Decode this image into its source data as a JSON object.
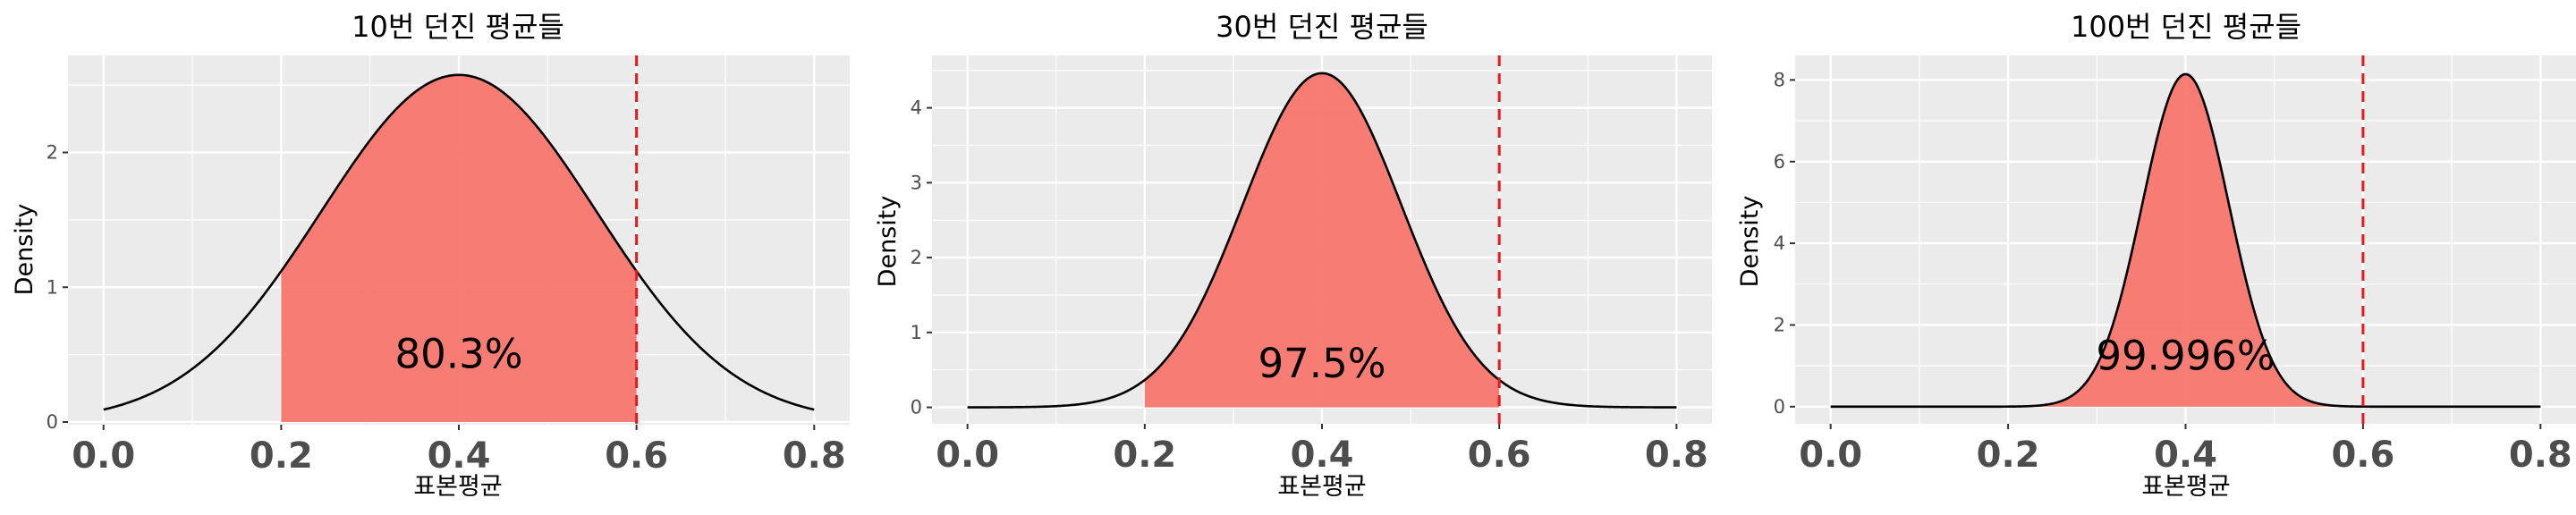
{
  "chart_data": [
    {
      "type": "area",
      "title": "10번 던진 평균들",
      "xlabel": "표본평균",
      "ylabel": "Density",
      "xlim": [
        -0.04,
        0.84
      ],
      "ylim": [
        -0.02,
        2.72
      ],
      "xticks": [
        "0.0",
        "0.2",
        "0.4",
        "0.6",
        "0.8"
      ],
      "xtick_values": [
        0.0,
        0.2,
        0.4,
        0.6,
        0.8
      ],
      "yticks": [
        "0",
        "1",
        "2"
      ],
      "ytick_values": [
        0,
        1,
        2
      ],
      "mean": 0.4,
      "sd": 0.1549,
      "curve_range": [
        0.0,
        0.8
      ],
      "shaded_range": [
        0.2,
        0.6
      ],
      "vline": 0.6,
      "annotation": {
        "text": "80.3%",
        "x": 0.4,
        "y": 0.4
      },
      "grid": true,
      "colors": {
        "fill": "#f8766d",
        "line": "#000000",
        "vline": "#e41a1c",
        "panel": "#ebebeb",
        "grid": "#ffffff"
      }
    },
    {
      "type": "area",
      "title": "30번 던진 평균들",
      "xlabel": "표본평균",
      "ylabel": "Density",
      "xlim": [
        -0.04,
        0.84
      ],
      "ylim": [
        -0.22,
        4.7
      ],
      "xticks": [
        "0.0",
        "0.2",
        "0.4",
        "0.6",
        "0.8"
      ],
      "xtick_values": [
        0.0,
        0.2,
        0.4,
        0.6,
        0.8
      ],
      "yticks": [
        "0",
        "1",
        "2",
        "3",
        "4"
      ],
      "ytick_values": [
        0,
        1,
        2,
        3,
        4
      ],
      "mean": 0.4,
      "sd": 0.0894,
      "curve_range": [
        0.0,
        0.8
      ],
      "shaded_range": [
        0.2,
        0.6
      ],
      "vline": 0.6,
      "annotation": {
        "text": "97.5%",
        "x": 0.4,
        "y": 0.4
      },
      "grid": true,
      "colors": {
        "fill": "#f8766d",
        "line": "#000000",
        "vline": "#e41a1c",
        "panel": "#ebebeb",
        "grid": "#ffffff"
      }
    },
    {
      "type": "area",
      "title": "100번 던진 평균들",
      "xlabel": "표본평균",
      "ylabel": "Density",
      "xlim": [
        -0.04,
        0.84
      ],
      "ylim": [
        -0.42,
        8.6
      ],
      "xticks": [
        "0.0",
        "0.2",
        "0.4",
        "0.6",
        "0.8"
      ],
      "xtick_values": [
        0.0,
        0.2,
        0.4,
        0.6,
        0.8
      ],
      "yticks": [
        "0",
        "2",
        "4",
        "6",
        "8"
      ],
      "ytick_values": [
        0,
        2,
        4,
        6,
        8
      ],
      "mean": 0.4,
      "sd": 0.049,
      "curve_range": [
        0.0,
        0.8
      ],
      "shaded_range": [
        0.2,
        0.6
      ],
      "vline": 0.6,
      "annotation": {
        "text": "99.996%",
        "x": 0.4,
        "y": 0.9
      },
      "grid": true,
      "colors": {
        "fill": "#f8766d",
        "line": "#000000",
        "vline": "#e41a1c",
        "panel": "#ebebeb",
        "grid": "#ffffff"
      }
    }
  ]
}
